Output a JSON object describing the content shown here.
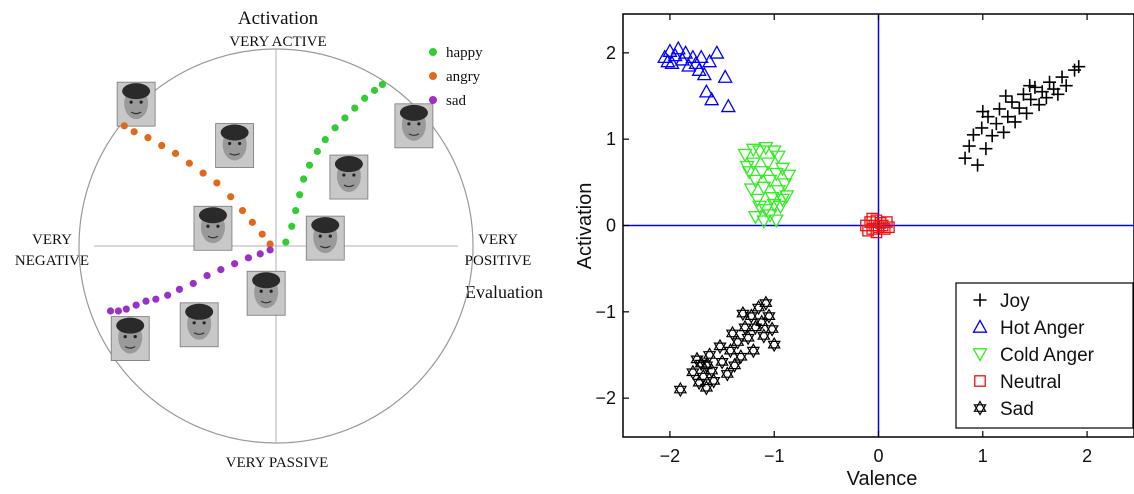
{
  "chart_data": [
    {
      "type": "scatter",
      "title": "Activation",
      "labels": {
        "top": "VERY ACTIVE",
        "bottom": "VERY PASSIVE",
        "left_line1": "VERY",
        "left_line2": "NEGATIVE",
        "right_line1": "VERY",
        "right_line2": "POSITIVE",
        "evaluation": "Evaluation"
      },
      "xlim": [
        -1,
        1
      ],
      "ylim": [
        -1,
        1
      ],
      "grid": false,
      "legend": "top-right",
      "series": [
        {
          "name": "happy",
          "color": "#33cc33",
          "x": [
            0.05,
            0.08,
            0.1,
            0.12,
            0.14,
            0.17,
            0.21,
            0.25,
            0.3,
            0.35,
            0.4,
            0.45,
            0.5,
            0.54
          ],
          "y": [
            0.02,
            0.1,
            0.18,
            0.26,
            0.34,
            0.41,
            0.48,
            0.54,
            0.6,
            0.65,
            0.7,
            0.75,
            0.79,
            0.82
          ]
        },
        {
          "name": "angry",
          "color": "#e06a1b",
          "x": [
            -0.77,
            -0.72,
            -0.65,
            -0.58,
            -0.51,
            -0.44,
            -0.37,
            -0.3,
            -0.23,
            -0.17,
            -0.12,
            -0.07,
            -0.03
          ],
          "y": [
            0.61,
            0.58,
            0.55,
            0.51,
            0.47,
            0.42,
            0.37,
            0.32,
            0.25,
            0.18,
            0.12,
            0.06,
            0.01
          ]
        },
        {
          "name": "sad",
          "color": "#9b30c8",
          "x": [
            -0.84,
            -0.8,
            -0.76,
            -0.71,
            -0.66,
            -0.61,
            -0.55,
            -0.49,
            -0.42,
            -0.35,
            -0.28,
            -0.21,
            -0.14,
            -0.08,
            -0.03
          ],
          "y": [
            -0.33,
            -0.33,
            -0.32,
            -0.3,
            -0.28,
            -0.27,
            -0.25,
            -0.22,
            -0.19,
            -0.15,
            -0.12,
            -0.09,
            -0.06,
            -0.04,
            -0.02
          ]
        }
      ],
      "faces": [
        {
          "x": -0.71,
          "y": 0.72
        },
        {
          "x": -0.21,
          "y": 0.51
        },
        {
          "x": -0.32,
          "y": 0.09
        },
        {
          "x": 0.7,
          "y": 0.61
        },
        {
          "x": 0.37,
          "y": 0.35
        },
        {
          "x": 0.25,
          "y": 0.04
        },
        {
          "x": -0.05,
          "y": -0.24
        },
        {
          "x": -0.39,
          "y": -0.4
        },
        {
          "x": -0.74,
          "y": -0.47
        }
      ]
    },
    {
      "type": "scatter",
      "xlabel": "Valence",
      "ylabel": "Activation",
      "xlim": [
        -2.45,
        2.45
      ],
      "ylim": [
        -2.45,
        2.45
      ],
      "xticks": [
        -2,
        -1,
        0,
        1,
        2
      ],
      "yticks": [
        -2,
        -1,
        0,
        1,
        2
      ],
      "tick_labels": [
        "−2",
        "−1",
        "0",
        "1",
        "2"
      ],
      "grid": false,
      "legend": "bottom-right",
      "axis_lines_color": "#0000ff",
      "series": [
        {
          "name": "Joy",
          "marker": "plus",
          "color": "#000000",
          "points": [
            [
              0.83,
              0.78
            ],
            [
              0.87,
              0.92
            ],
            [
              0.91,
              1.05
            ],
            [
              0.95,
              0.7
            ],
            [
              0.99,
              1.13
            ],
            [
              1.03,
              0.89
            ],
            [
              1.05,
              1.26
            ],
            [
              1.09,
              1.04
            ],
            [
              1.13,
              1.18
            ],
            [
              1.16,
              1.35
            ],
            [
              1.2,
              1.08
            ],
            [
              1.24,
              1.26
            ],
            [
              1.28,
              1.43
            ],
            [
              1.31,
              1.2
            ],
            [
              1.35,
              1.36
            ],
            [
              1.39,
              1.52
            ],
            [
              1.42,
              1.3
            ],
            [
              1.46,
              1.46
            ],
            [
              1.5,
              1.6
            ],
            [
              1.54,
              1.4
            ],
            [
              1.57,
              1.55
            ],
            [
              1.61,
              1.48
            ],
            [
              1.64,
              1.66
            ],
            [
              1.68,
              1.58
            ],
            [
              1.72,
              1.52
            ],
            [
              1.76,
              1.72
            ],
            [
              1.8,
              1.62
            ],
            [
              1.88,
              1.8
            ],
            [
              1.92,
              1.84
            ],
            [
              1.0,
              1.32
            ],
            [
              1.22,
              1.5
            ],
            [
              1.45,
              1.62
            ]
          ]
        },
        {
          "name": "Hot Anger",
          "marker": "triangle-up",
          "color": "#0000ff",
          "points": [
            [
              -2.05,
              1.95
            ],
            [
              -2.0,
              2.02
            ],
            [
              -1.98,
              1.88
            ],
            [
              -1.95,
              1.97
            ],
            [
              -1.92,
              2.05
            ],
            [
              -1.88,
              1.92
            ],
            [
              -1.85,
              2.0
            ],
            [
              -1.82,
              1.85
            ],
            [
              -1.78,
              1.95
            ],
            [
              -1.75,
              1.88
            ],
            [
              -1.72,
              1.8
            ],
            [
              -1.7,
              1.95
            ],
            [
              -1.67,
              1.75
            ],
            [
              -1.65,
              1.55
            ],
            [
              -1.62,
              1.9
            ],
            [
              -1.6,
              1.46
            ],
            [
              -1.55,
              2.0
            ],
            [
              -1.47,
              1.72
            ],
            [
              -1.44,
              1.38
            ],
            [
              -2.02,
              1.9
            ]
          ]
        },
        {
          "name": "Cold Anger",
          "marker": "triangle-down",
          "color": "#33ee22",
          "points": [
            [
              -1.28,
              0.82
            ],
            [
              -1.24,
              0.62
            ],
            [
              -1.22,
              0.42
            ],
            [
              -1.2,
              0.72
            ],
            [
              -1.18,
              0.52
            ],
            [
              -1.16,
              0.3
            ],
            [
              -1.14,
              0.86
            ],
            [
              -1.12,
              0.62
            ],
            [
              -1.1,
              0.44
            ],
            [
              -1.08,
              0.18
            ],
            [
              -1.06,
              0.72
            ],
            [
              -1.04,
              0.52
            ],
            [
              -1.02,
              0.32
            ],
            [
              -1.0,
              0.86
            ],
            [
              -0.98,
              0.6
            ],
            [
              -0.96,
              0.4
            ],
            [
              -0.94,
              0.22
            ],
            [
              -0.92,
              0.66
            ],
            [
              -0.9,
              0.48
            ],
            [
              -0.88,
              0.34
            ],
            [
              -0.86,
              0.58
            ],
            [
              -1.26,
              0.68
            ],
            [
              -1.18,
              0.1
            ],
            [
              -1.14,
              0.22
            ],
            [
              -1.1,
              0.05
            ],
            [
              -1.04,
              0.12
            ],
            [
              -0.98,
              0.06
            ],
            [
              -1.0,
              0.24
            ],
            [
              -0.96,
              0.8
            ],
            [
              -0.92,
              0.3
            ],
            [
              -1.2,
              0.88
            ],
            [
              -1.08,
              0.9
            ]
          ]
        },
        {
          "name": "Neutral",
          "marker": "square",
          "color": "#ee1111",
          "points": [
            [
              -0.12,
              0.0
            ],
            [
              -0.08,
              0.04
            ],
            [
              -0.06,
              -0.04
            ],
            [
              -0.04,
              0.0
            ],
            [
              -0.02,
              0.06
            ],
            [
              0.0,
              -0.02
            ],
            [
              0.02,
              0.03
            ],
            [
              0.04,
              0.0
            ],
            [
              0.06,
              -0.04
            ],
            [
              0.08,
              0.04
            ],
            [
              -0.1,
              -0.06
            ],
            [
              -0.02,
              -0.08
            ],
            [
              0.1,
              -0.02
            ],
            [
              -0.06,
              0.08
            ]
          ]
        },
        {
          "name": "Sad",
          "marker": "hexagram",
          "color": "#000000",
          "points": [
            [
              -1.9,
              -1.9
            ],
            [
              -1.78,
              -1.7
            ],
            [
              -1.74,
              -1.55
            ],
            [
              -1.72,
              -1.82
            ],
            [
              -1.7,
              -1.6
            ],
            [
              -1.68,
              -1.75
            ],
            [
              -1.65,
              -1.88
            ],
            [
              -1.62,
              -1.5
            ],
            [
              -1.6,
              -1.68
            ],
            [
              -1.58,
              -1.8
            ],
            [
              -1.52,
              -1.4
            ],
            [
              -1.5,
              -1.58
            ],
            [
              -1.45,
              -1.72
            ],
            [
              -1.42,
              -1.45
            ],
            [
              -1.4,
              -1.25
            ],
            [
              -1.38,
              -1.62
            ],
            [
              -1.35,
              -1.35
            ],
            [
              -1.32,
              -1.52
            ],
            [
              -1.28,
              -1.18
            ],
            [
              -1.25,
              -1.3
            ],
            [
              -1.22,
              -1.05
            ],
            [
              -1.2,
              -1.45
            ],
            [
              -1.18,
              -1.18
            ],
            [
              -1.15,
              -0.95
            ],
            [
              -1.12,
              -1.12
            ],
            [
              -1.1,
              -1.28
            ],
            [
              -1.08,
              -0.9
            ],
            [
              -1.05,
              -1.05
            ],
            [
              -1.02,
              -1.2
            ],
            [
              -1.0,
              -1.38
            ],
            [
              -1.3,
              -1.02
            ],
            [
              -1.65,
              -1.62
            ]
          ]
        }
      ]
    }
  ]
}
